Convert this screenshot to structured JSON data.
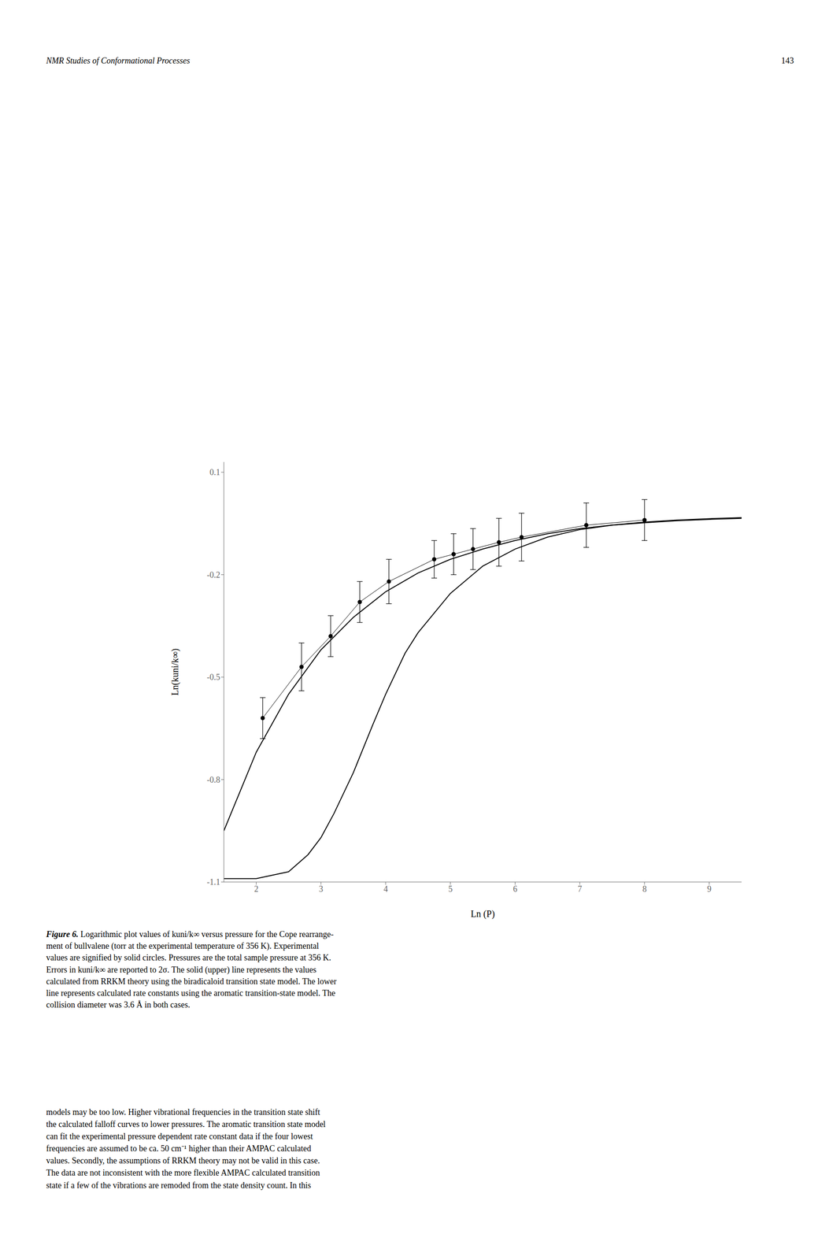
{
  "chart_data": {
    "type": "line",
    "header_left": "NMR Studies of Conformational Processes",
    "header_right": "143",
    "xlabel": "Ln (P)",
    "ylabel": "Ln(kuni/k∞)",
    "xlim": [
      1.5,
      9.5
    ],
    "ylim": [
      -1.1,
      0.13
    ],
    "xticks": [
      2,
      3,
      4,
      5,
      6,
      7,
      8,
      9
    ],
    "yticks": [
      0.1,
      -0.2,
      -0.5,
      -0.8,
      -1.1
    ],
    "series": [
      {
        "type": "line",
        "color": "#000000",
        "x": [
          1.5,
          2.0,
          2.5,
          3.0,
          3.5,
          4.0,
          4.5,
          5.0,
          5.5,
          6.0,
          6.5,
          7.0,
          7.5,
          8.0,
          8.5,
          9.0,
          9.5
        ],
        "values": [
          -0.95,
          -0.72,
          -0.55,
          -0.42,
          -0.325,
          -0.25,
          -0.195,
          -0.155,
          -0.125,
          -0.1,
          -0.08,
          -0.065,
          -0.055,
          -0.048,
          -0.042,
          -0.038,
          -0.035
        ]
      },
      {
        "type": "line",
        "color": "#000000",
        "x": [
          1.5,
          2.0,
          2.5,
          2.8,
          3.0,
          3.2,
          3.5,
          3.8,
          4.0,
          4.3,
          4.5,
          5.0,
          5.5,
          6.0,
          6.5,
          7.0,
          7.5,
          8.0,
          8.5,
          9.0,
          9.5
        ],
        "values": [
          -1.09,
          -1.09,
          -1.07,
          -1.02,
          -0.97,
          -0.9,
          -0.78,
          -0.64,
          -0.55,
          -0.43,
          -0.37,
          -0.255,
          -0.175,
          -0.125,
          -0.09,
          -0.068,
          -0.055,
          -0.046,
          -0.04,
          -0.036,
          -0.033
        ]
      },
      {
        "type": "line",
        "color": "#000000",
        "marker": "circle",
        "x": [
          2.1,
          2.7,
          3.15,
          3.6,
          4.05,
          4.75,
          5.05,
          5.35,
          5.75,
          6.1,
          7.1,
          8.0
        ],
        "values": [
          -0.62,
          -0.47,
          -0.38,
          -0.28,
          -0.22,
          -0.155,
          -0.14,
          -0.125,
          -0.105,
          -0.09,
          -0.055,
          -0.04
        ],
        "errors": [
          0.06,
          0.07,
          0.06,
          0.06,
          0.065,
          0.055,
          0.06,
          0.06,
          0.07,
          0.07,
          0.065,
          0.06
        ]
      }
    ],
    "caption_label": "Figure 6.",
    "caption": [
      "Logarithmic plot values of kuni/k∞ versus pressure for the Cope rearrange-",
      "ment of bullvalene (torr at the experimental temperature of 356 K). Experimental",
      "values are signified by solid circles. Pressures are the total sample pressure at 356 K.",
      "Errors in kuni/k∞ are reported to 2σ. The solid (upper) line represents the values",
      "calculated from RRKM theory using the biradicaloid transition state model. The lower",
      "line represents calculated rate constants using the aromatic transition-state model. The",
      "collision diameter was 3.6 Å in both cases."
    ],
    "body": [
      "models may be too low. Higher vibrational frequencies in the transition state shift",
      "the calculated falloff curves to lower pressures. The aromatic transition state model",
      "can fit the experimental pressure dependent rate constant data if the four lowest",
      "frequencies are assumed to be ca. 50 cm⁻¹ higher than their AMPAC calculated",
      "values. Secondly, the assumptions of RRKM theory may not be valid in this case.",
      "The data are not inconsistent with the more flexible AMPAC calculated transition",
      "state if a few of the vibrations are remoded from the state density count. In this"
    ]
  }
}
